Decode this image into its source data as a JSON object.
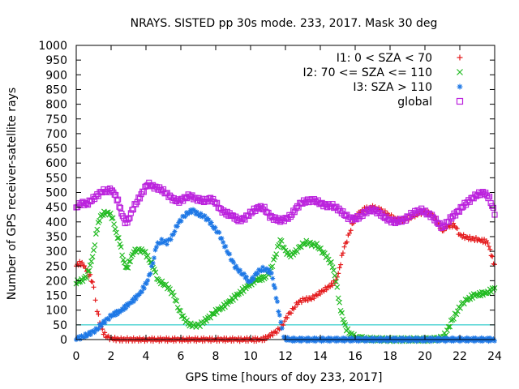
{
  "chart_data": {
    "type": "scatter",
    "title": "NRAYS. SISTED pp 30s mode. 233, 2017. Mask 30 deg",
    "xlabel": "GPS time [hours of doy 233, 2017]",
    "ylabel": "Number of GPS receiver-satellite rays",
    "xlim": [
      0,
      24
    ],
    "ylim": [
      0,
      1000
    ],
    "xticks": [
      0,
      2,
      4,
      6,
      8,
      10,
      12,
      14,
      16,
      18,
      20,
      22,
      24
    ],
    "yticks": [
      0,
      50,
      100,
      150,
      200,
      250,
      300,
      350,
      400,
      450,
      500,
      550,
      600,
      650,
      700,
      750,
      800,
      850,
      900,
      950,
      1000
    ],
    "threshold": {
      "value": 50,
      "color": "#00c0c0"
    },
    "legend_position": "top-right",
    "series": [
      {
        "name": "I1: 0 < SZA < 70",
        "marker": "+",
        "color": "#e41a1c",
        "points": [
          [
            0,
            250
          ],
          [
            0.2,
            260
          ],
          [
            0.4,
            255
          ],
          [
            0.6,
            235
          ],
          [
            0.8,
            215
          ],
          [
            1.0,
            180
          ],
          [
            1.1,
            140
          ],
          [
            1.2,
            100
          ],
          [
            1.35,
            60
          ],
          [
            1.5,
            30
          ],
          [
            1.7,
            12
          ],
          [
            2.0,
            3
          ],
          [
            2.5,
            0
          ],
          [
            4,
            0
          ],
          [
            6,
            0
          ],
          [
            8,
            0
          ],
          [
            10,
            0
          ],
          [
            10.6,
            0
          ],
          [
            10.8,
            3
          ],
          [
            11.0,
            10
          ],
          [
            11.2,
            18
          ],
          [
            11.5,
            28
          ],
          [
            11.8,
            45
          ],
          [
            12.1,
            80
          ],
          [
            12.4,
            100
          ],
          [
            12.7,
            125
          ],
          [
            13.0,
            135
          ],
          [
            13.5,
            140
          ],
          [
            14.0,
            160
          ],
          [
            14.5,
            180
          ],
          [
            14.9,
            200
          ],
          [
            15.1,
            240
          ],
          [
            15.3,
            300
          ],
          [
            15.6,
            350
          ],
          [
            15.9,
            400
          ],
          [
            16.2,
            430
          ],
          [
            16.6,
            445
          ],
          [
            17.0,
            450
          ],
          [
            17.5,
            440
          ],
          [
            18.0,
            420
          ],
          [
            18.5,
            405
          ],
          [
            19.0,
            410
          ],
          [
            19.5,
            425
          ],
          [
            20.0,
            435
          ],
          [
            20.5,
            420
          ],
          [
            20.8,
            390
          ],
          [
            21.0,
            370
          ],
          [
            21.3,
            385
          ],
          [
            21.7,
            390
          ],
          [
            22.0,
            355
          ],
          [
            22.5,
            345
          ],
          [
            23.0,
            340
          ],
          [
            23.4,
            335
          ],
          [
            23.6,
            330
          ],
          [
            23.8,
            290
          ],
          [
            24.0,
            250
          ]
        ]
      },
      {
        "name": "I2: 70 <= SZA <= 110",
        "marker": "x",
        "color": "#22bb22",
        "points": [
          [
            0,
            195
          ],
          [
            0.3,
            200
          ],
          [
            0.6,
            215
          ],
          [
            0.8,
            250
          ],
          [
            1.0,
            300
          ],
          [
            1.2,
            380
          ],
          [
            1.4,
            420
          ],
          [
            1.6,
            430
          ],
          [
            1.9,
            430
          ],
          [
            2.1,
            410
          ],
          [
            2.3,
            360
          ],
          [
            2.5,
            330
          ],
          [
            2.7,
            270
          ],
          [
            2.9,
            240
          ],
          [
            3.1,
            270
          ],
          [
            3.3,
            300
          ],
          [
            3.6,
            305
          ],
          [
            3.9,
            300
          ],
          [
            4.1,
            280
          ],
          [
            4.4,
            250
          ],
          [
            4.7,
            200
          ],
          [
            5.0,
            190
          ],
          [
            5.3,
            175
          ],
          [
            5.6,
            150
          ],
          [
            5.9,
            100
          ],
          [
            6.2,
            70
          ],
          [
            6.5,
            50
          ],
          [
            6.8,
            48
          ],
          [
            7.1,
            50
          ],
          [
            7.4,
            65
          ],
          [
            7.7,
            80
          ],
          [
            8.0,
            95
          ],
          [
            8.4,
            110
          ],
          [
            8.8,
            130
          ],
          [
            9.2,
            150
          ],
          [
            9.6,
            170
          ],
          [
            10.0,
            190
          ],
          [
            10.4,
            205
          ],
          [
            10.8,
            210
          ],
          [
            11.1,
            230
          ],
          [
            11.4,
            280
          ],
          [
            11.7,
            340
          ],
          [
            12.0,
            300
          ],
          [
            12.3,
            285
          ],
          [
            12.6,
            300
          ],
          [
            12.9,
            320
          ],
          [
            13.2,
            330
          ],
          [
            13.5,
            325
          ],
          [
            13.8,
            320
          ],
          [
            14.1,
            300
          ],
          [
            14.4,
            280
          ],
          [
            14.7,
            250
          ],
          [
            14.9,
            200
          ],
          [
            15.1,
            120
          ],
          [
            15.3,
            70
          ],
          [
            15.5,
            35
          ],
          [
            15.8,
            15
          ],
          [
            16.2,
            5
          ],
          [
            16.8,
            2
          ],
          [
            18,
            0
          ],
          [
            19,
            0
          ],
          [
            20,
            0
          ],
          [
            20.6,
            2
          ],
          [
            20.9,
            5
          ],
          [
            21.2,
            20
          ],
          [
            21.5,
            60
          ],
          [
            21.8,
            90
          ],
          [
            22.1,
            120
          ],
          [
            22.4,
            135
          ],
          [
            22.8,
            150
          ],
          [
            23.2,
            155
          ],
          [
            23.6,
            160
          ],
          [
            24.0,
            175
          ]
        ]
      },
      {
        "name": "I3: SZA > 110",
        "marker": "*",
        "color": "#1e78e6",
        "points": [
          [
            0,
            5
          ],
          [
            0.3,
            8
          ],
          [
            0.6,
            15
          ],
          [
            0.9,
            25
          ],
          [
            1.2,
            35
          ],
          [
            1.5,
            55
          ],
          [
            1.8,
            70
          ],
          [
            2.1,
            85
          ],
          [
            2.5,
            95
          ],
          [
            2.9,
            115
          ],
          [
            3.3,
            135
          ],
          [
            3.7,
            160
          ],
          [
            4.1,
            200
          ],
          [
            4.4,
            260
          ],
          [
            4.6,
            320
          ],
          [
            4.9,
            335
          ],
          [
            5.2,
            330
          ],
          [
            5.5,
            350
          ],
          [
            5.8,
            390
          ],
          [
            6.1,
            415
          ],
          [
            6.4,
            430
          ],
          [
            6.7,
            440
          ],
          [
            7.0,
            425
          ],
          [
            7.3,
            420
          ],
          [
            7.6,
            405
          ],
          [
            7.9,
            380
          ],
          [
            8.2,
            360
          ],
          [
            8.5,
            320
          ],
          [
            8.8,
            285
          ],
          [
            9.1,
            250
          ],
          [
            9.4,
            230
          ],
          [
            9.7,
            215
          ],
          [
            9.9,
            195
          ],
          [
            10.1,
            205
          ],
          [
            10.4,
            230
          ],
          [
            10.7,
            240
          ],
          [
            11.0,
            235
          ],
          [
            11.2,
            225
          ],
          [
            11.4,
            170
          ],
          [
            11.6,
            100
          ],
          [
            11.8,
            40
          ],
          [
            11.9,
            5
          ],
          [
            12.2,
            0
          ],
          [
            14,
            0
          ],
          [
            16,
            0
          ],
          [
            18,
            0
          ],
          [
            20,
            0
          ],
          [
            22,
            0
          ],
          [
            24,
            0
          ]
        ]
      },
      {
        "name": "global",
        "marker": "square",
        "color": "#bb22dd",
        "points": [
          [
            0,
            450
          ],
          [
            0.3,
            465
          ],
          [
            0.6,
            460
          ],
          [
            0.9,
            475
          ],
          [
            1.2,
            490
          ],
          [
            1.5,
            505
          ],
          [
            1.8,
            505
          ],
          [
            2.0,
            510
          ],
          [
            2.2,
            495
          ],
          [
            2.4,
            470
          ],
          [
            2.6,
            430
          ],
          [
            2.8,
            400
          ],
          [
            3.0,
            405
          ],
          [
            3.2,
            440
          ],
          [
            3.5,
            470
          ],
          [
            3.8,
            500
          ],
          [
            4.1,
            530
          ],
          [
            4.4,
            520
          ],
          [
            4.7,
            515
          ],
          [
            5.0,
            505
          ],
          [
            5.3,
            490
          ],
          [
            5.6,
            475
          ],
          [
            5.9,
            470
          ],
          [
            6.2,
            480
          ],
          [
            6.5,
            490
          ],
          [
            6.8,
            480
          ],
          [
            7.1,
            475
          ],
          [
            7.4,
            470
          ],
          [
            7.7,
            480
          ],
          [
            8.0,
            465
          ],
          [
            8.3,
            440
          ],
          [
            8.6,
            430
          ],
          [
            9.0,
            420
          ],
          [
            9.3,
            405
          ],
          [
            9.6,
            410
          ],
          [
            9.9,
            425
          ],
          [
            10.2,
            440
          ],
          [
            10.5,
            450
          ],
          [
            10.8,
            445
          ],
          [
            11.1,
            420
          ],
          [
            11.4,
            410
          ],
          [
            11.7,
            405
          ],
          [
            12.0,
            410
          ],
          [
            12.3,
            420
          ],
          [
            12.6,
            445
          ],
          [
            12.9,
            465
          ],
          [
            13.2,
            470
          ],
          [
            13.5,
            475
          ],
          [
            13.8,
            470
          ],
          [
            14.1,
            460
          ],
          [
            14.4,
            455
          ],
          [
            14.7,
            455
          ],
          [
            15.0,
            445
          ],
          [
            15.3,
            430
          ],
          [
            15.6,
            415
          ],
          [
            15.9,
            410
          ],
          [
            16.2,
            415
          ],
          [
            16.5,
            430
          ],
          [
            16.8,
            440
          ],
          [
            17.1,
            440
          ],
          [
            17.4,
            430
          ],
          [
            17.7,
            415
          ],
          [
            18.0,
            405
          ],
          [
            18.3,
            400
          ],
          [
            18.6,
            405
          ],
          [
            18.9,
            410
          ],
          [
            19.2,
            425
          ],
          [
            19.5,
            435
          ],
          [
            19.8,
            440
          ],
          [
            20.1,
            430
          ],
          [
            20.4,
            420
          ],
          [
            20.7,
            400
          ],
          [
            21.0,
            380
          ],
          [
            21.3,
            400
          ],
          [
            21.6,
            420
          ],
          [
            21.9,
            435
          ],
          [
            22.2,
            455
          ],
          [
            22.5,
            470
          ],
          [
            22.8,
            485
          ],
          [
            23.1,
            495
          ],
          [
            23.4,
            500
          ],
          [
            23.7,
            480
          ],
          [
            24.0,
            430
          ]
        ]
      }
    ]
  }
}
